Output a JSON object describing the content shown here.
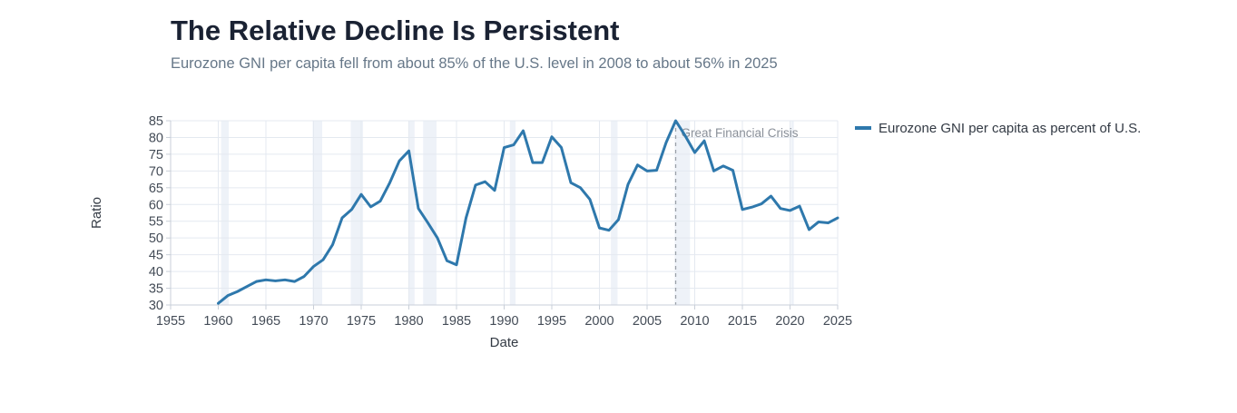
{
  "header": {
    "title": "The Relative Decline Is Persistent",
    "subtitle": "Eurozone GNI per capita fell from about 85% of the U.S. level in 2008 to about 56% in 2025"
  },
  "chart_data": {
    "type": "line",
    "xlabel": "Date",
    "ylabel": "Ratio",
    "xlim": [
      1955,
      2025
    ],
    "ylim": [
      30,
      85
    ],
    "x_ticks": [
      1955,
      1960,
      1965,
      1970,
      1975,
      1980,
      1985,
      1990,
      1995,
      2000,
      2005,
      2010,
      2015,
      2020,
      2025
    ],
    "y_ticks": [
      30,
      35,
      40,
      45,
      50,
      55,
      60,
      65,
      70,
      75,
      80,
      85
    ],
    "grid": true,
    "legend": "right",
    "line_color": "#2e78ac",
    "recession_shading_color": "#eef2f8",
    "recessions": [
      [
        1960.3,
        1961.1
      ],
      [
        1969.9,
        1970.9
      ],
      [
        1973.9,
        1975.2
      ],
      [
        1980.0,
        1980.6
      ],
      [
        1981.5,
        1982.9
      ],
      [
        1990.6,
        1991.2
      ],
      [
        2001.2,
        2001.9
      ],
      [
        2007.9,
        2009.5
      ],
      [
        2020.1,
        2020.4
      ]
    ],
    "annotations": [
      {
        "x": 2008,
        "label": "Great Financial Crisis",
        "color": "#9aa0a8"
      }
    ],
    "series": [
      {
        "name": "Eurozone GNI per capita as percent of U.S.",
        "x": [
          1960,
          1961,
          1962,
          1963,
          1964,
          1965,
          1966,
          1967,
          1968,
          1969,
          1970,
          1971,
          1972,
          1973,
          1974,
          1975,
          1976,
          1977,
          1978,
          1979,
          1980,
          1981,
          1982,
          1983,
          1984,
          1985,
          1986,
          1987,
          1988,
          1989,
          1990,
          1991,
          1992,
          1993,
          1994,
          1995,
          1996,
          1997,
          1998,
          1999,
          2000,
          2001,
          2002,
          2003,
          2004,
          2005,
          2006,
          2007,
          2008,
          2009,
          2010,
          2011,
          2012,
          2013,
          2014,
          2015,
          2016,
          2017,
          2018,
          2019,
          2020,
          2021,
          2022,
          2023,
          2024,
          2025
        ],
        "values": [
          30.5,
          32.8,
          34,
          35.5,
          37,
          37.5,
          37.2,
          37.5,
          37,
          38.5,
          41.5,
          43.5,
          48,
          56,
          58.5,
          63,
          59.3,
          61,
          66.5,
          73,
          76,
          58.8,
          54.5,
          50,
          43.2,
          42,
          56,
          65.8,
          66.8,
          64.2,
          77,
          77.8,
          82,
          72.5,
          72.5,
          80.2,
          77,
          66.5,
          65,
          61.5,
          53,
          52.3,
          55.5,
          66,
          71.8,
          70,
          70.2,
          78.5,
          85,
          80.5,
          75.5,
          79,
          70,
          71.5,
          70.2,
          58.5,
          59.2,
          60.2,
          62.5,
          58.8,
          58.2,
          59.5,
          52.5,
          54.8,
          54.5,
          56
        ]
      }
    ]
  }
}
